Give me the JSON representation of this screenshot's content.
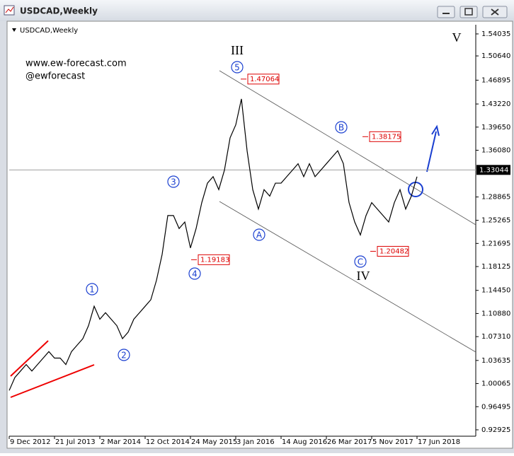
{
  "window": {
    "title": "USDCAD,Weekly"
  },
  "chart_data": {
    "type": "line",
    "title": "USDCAD,Weekly",
    "watermark": [
      "www.ew-forecast.com",
      "@ewforecast"
    ],
    "categories": [
      "9 Dec 2012",
      null,
      null,
      null,
      null,
      null,
      null,
      null,
      "21 Jul 2013",
      null,
      null,
      null,
      null,
      null,
      null,
      null,
      "2 Mar 2014",
      null,
      null,
      null,
      null,
      null,
      null,
      null,
      "12 Oct 2014",
      null,
      null,
      null,
      null,
      null,
      null,
      null,
      "24 May 2015",
      null,
      null,
      null,
      null,
      null,
      null,
      null,
      "3 Jan 2016",
      null,
      null,
      null,
      null,
      null,
      null,
      null,
      "14 Aug 2016",
      null,
      null,
      null,
      null,
      null,
      null,
      null,
      "26 Mar 2017",
      null,
      null,
      null,
      null,
      null,
      null,
      null,
      "5 Nov 2017",
      null,
      null,
      null,
      null,
      null,
      null,
      null,
      "17 Jun 2018"
    ],
    "values": [
      0.99,
      1.01,
      1.02,
      1.03,
      1.02,
      1.03,
      1.04,
      1.05,
      1.04,
      1.04,
      1.03,
      1.05,
      1.06,
      1.07,
      1.09,
      1.12,
      1.1,
      1.11,
      1.1,
      1.09,
      1.07,
      1.08,
      1.1,
      1.11,
      1.12,
      1.13,
      1.16,
      1.2,
      1.26,
      1.26,
      1.24,
      1.25,
      1.21,
      1.24,
      1.28,
      1.31,
      1.32,
      1.3,
      1.33,
      1.38,
      1.4,
      1.44,
      1.36,
      1.3,
      1.27,
      1.3,
      1.29,
      1.31,
      1.31,
      1.32,
      1.33,
      1.34,
      1.32,
      1.34,
      1.32,
      1.33,
      1.34,
      1.35,
      1.36,
      1.34,
      1.28,
      1.25,
      1.23,
      1.26,
      1.28,
      1.27,
      1.26,
      1.25,
      1.28,
      1.3,
      1.27,
      1.29,
      1.32
    ],
    "color": "#000000",
    "ylim": [
      0.9194,
      1.5545
    ],
    "yticks": [
      1.54035,
      {
        "value": 1.5064,
        "label": "1.50640"
      },
      1.46895,
      {
        "value": 1.4322,
        "label": "1.43220"
      },
      {
        "value": 1.3965,
        "label": "1.39650"
      },
      {
        "value": 1.3608,
        "label": "1.36080"
      },
      1.28865,
      1.25265,
      1.21695,
      1.18125,
      {
        "value": 1.1445,
        "label": "1.14450"
      },
      {
        "value": 1.1088,
        "label": "1.10880"
      },
      {
        "value": 1.0731,
        "label": "1.07310"
      },
      1.03635,
      1.00065,
      0.96495,
      0.92925
    ],
    "current_price": 1.33044,
    "price_labels": [
      1.47064,
      1.38175,
      1.20482,
      1.19183
    ],
    "wave_labels": [
      "1",
      "2",
      "3",
      "4",
      "5",
      "A",
      "B",
      "C"
    ],
    "degree_labels": [
      "III",
      "IV",
      "V"
    ]
  }
}
